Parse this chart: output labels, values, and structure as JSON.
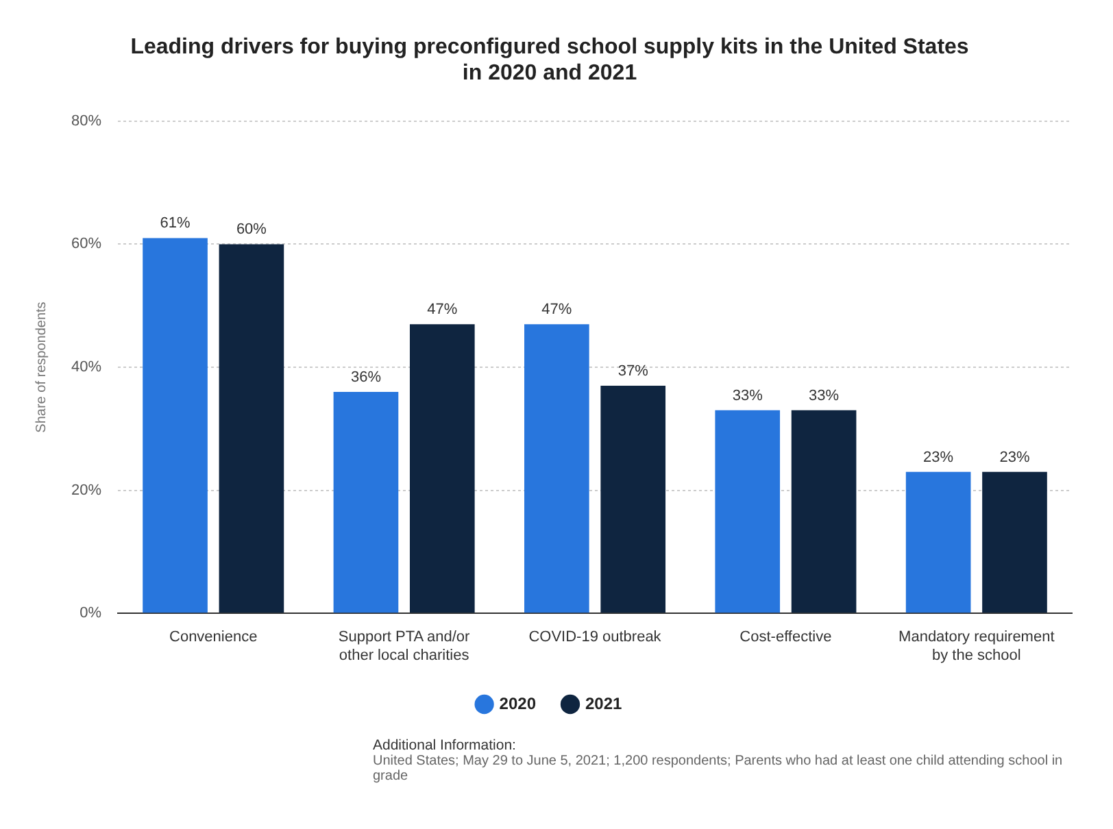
{
  "chart_data": {
    "type": "bar",
    "title": "Leading drivers for buying preconfigured school supply kits in the United States in 2020 and 2021",
    "ylabel": "Share of respondents",
    "categories": [
      "Convenience",
      "Support PTA and/or other local charities",
      "COVID-19 outbreak",
      "Cost-effective",
      "Mandatory requirement by the school"
    ],
    "series": [
      {
        "name": "2020",
        "color": "#2876dd",
        "values": [
          61,
          36,
          47,
          33,
          23
        ],
        "value_labels": [
          "61%",
          "36%",
          "47%",
          "33%",
          "23%"
        ]
      },
      {
        "name": "2021",
        "color": "#0f2540",
        "values": [
          60,
          47,
          37,
          33,
          23
        ],
        "value_labels": [
          "60%",
          "47%",
          "37%",
          "33%",
          "23%"
        ]
      }
    ],
    "ylim": [
      0,
      80
    ],
    "yticks": [
      {
        "value": 0,
        "label": "0%"
      },
      {
        "value": 20,
        "label": "20%"
      },
      {
        "value": 40,
        "label": "40%"
      },
      {
        "value": 60,
        "label": "60%"
      },
      {
        "value": 80,
        "label": "80%"
      }
    ],
    "grid": "y",
    "legend": "bottom",
    "annotations": [
      "Additional Information:",
      "United States; May 29 to June 5, 2021; 1,200 respondents; Parents who had at least one child attending school in grade"
    ]
  }
}
